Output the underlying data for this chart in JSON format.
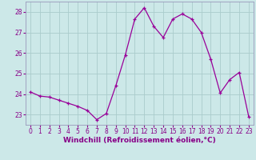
{
  "x": [
    0,
    1,
    2,
    3,
    4,
    5,
    6,
    7,
    8,
    9,
    10,
    11,
    12,
    13,
    14,
    15,
    16,
    17,
    18,
    19,
    20,
    21,
    22,
    23
  ],
  "y": [
    24.1,
    23.9,
    23.85,
    23.7,
    23.55,
    23.4,
    23.2,
    22.75,
    23.05,
    24.4,
    25.9,
    27.65,
    28.2,
    27.3,
    26.75,
    27.65,
    27.9,
    27.65,
    27.0,
    25.7,
    24.05,
    24.7,
    25.05,
    22.9
  ],
  "line_color": "#990099",
  "marker": "+",
  "background_color": "#cce8e8",
  "grid_color": "#aacccc",
  "xlabel": "Windchill (Refroidissement éolien,°C)",
  "xlim": [
    -0.5,
    23.5
  ],
  "ylim": [
    22.5,
    28.5
  ],
  "yticks": [
    23,
    24,
    25,
    26,
    27,
    28
  ],
  "xticks": [
    0,
    1,
    2,
    3,
    4,
    5,
    6,
    7,
    8,
    9,
    10,
    11,
    12,
    13,
    14,
    15,
    16,
    17,
    18,
    19,
    20,
    21,
    22,
    23
  ],
  "tick_fontsize": 5.5,
  "xlabel_fontsize": 6.5,
  "tick_color": "#880088",
  "spine_color": "#9999bb"
}
